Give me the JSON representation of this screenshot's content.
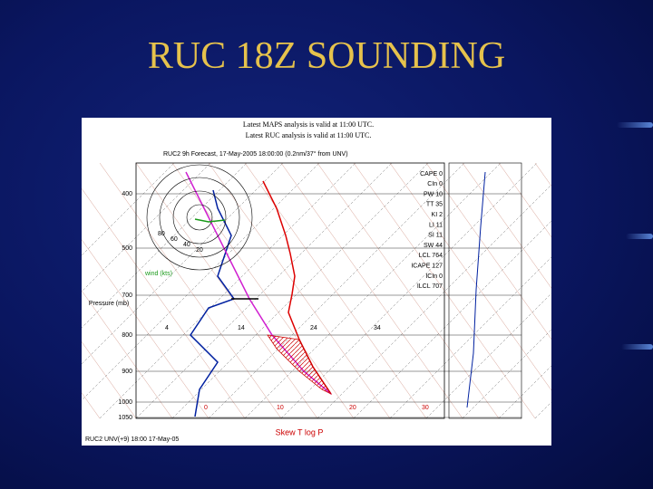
{
  "slide": {
    "title": "RUC 18Z SOUNDING"
  },
  "figure": {
    "analysis_notes": [
      "Latest MAPS analysis is valid at 11:00 UTC.",
      "Latest RUC analysis is valid at 11:00 UTC."
    ],
    "forecast_header": "RUC2 9h Forecast, 17-May-2005 18:00:00 (0.2nm/37° from UNV)",
    "indices": [
      "CAPE 0",
      "CIn 0",
      "PW 10",
      "TT 35",
      "KI 2",
      "LI 11",
      "SI 11",
      "SW 44",
      "LCL 764",
      "ICAPE 127",
      "ICIn 0",
      "ILCL 707"
    ],
    "pressure_axis_title": "Pressure (mb)",
    "pressure_labels": [
      "400",
      "500",
      "700",
      "800",
      "900",
      "1000",
      "1050"
    ],
    "isotherm_labels": [
      "4",
      "14",
      "24",
      "34"
    ],
    "temperature_labels": [
      "0",
      "10",
      "20",
      "30"
    ],
    "hodograph_title": "wind (kts)",
    "hodograph_rings": [
      "80",
      "60",
      "40",
      "20"
    ],
    "x_axis_title": "Skew T log P",
    "footer": "RUC2 UNV(+9) 18:00 17-May-05"
  }
}
